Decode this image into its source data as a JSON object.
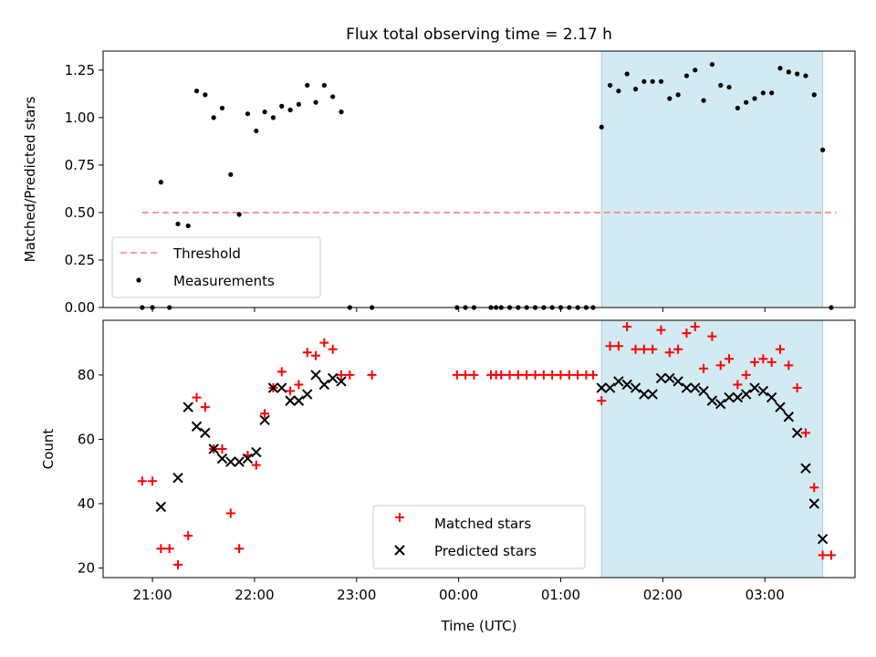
{
  "figure": {
    "title": "Flux total observing time = 2.17 h",
    "xlabel": "Time (UTC)",
    "x_ticks": [
      "21:00",
      "22:00",
      "23:00",
      "00:00",
      "01:00",
      "02:00",
      "03:00"
    ],
    "highlight_span": {
      "start": "01:24",
      "end": "03:34"
    },
    "colors": {
      "highlight": "#add8e6",
      "threshold": "#ff7f7f",
      "matched": "#ff0000",
      "predicted": "#000000"
    }
  },
  "chart_data": [
    {
      "type": "scatter",
      "ylabel": "Matched/Predicted stars",
      "ylim": [
        0,
        1.35
      ],
      "y_ticks": [
        "0.00",
        "0.25",
        "0.50",
        "0.75",
        "1.00",
        "1.25"
      ],
      "xlim": [
        "20:31",
        "03:53"
      ],
      "legend": {
        "placement": "lower-left",
        "entries": [
          "Threshold",
          "Measurements"
        ]
      },
      "threshold": {
        "name": "Threshold",
        "value": 0.5,
        "x_range": [
          "20:54",
          "03:42"
        ]
      },
      "series": [
        {
          "name": "Measurements",
          "points": [
            [
              "20:54",
              0.0
            ],
            [
              "21:00",
              0.0
            ],
            [
              "21:05",
              0.66
            ],
            [
              "21:10",
              0.0
            ],
            [
              "21:15",
              0.44
            ],
            [
              "21:21",
              0.43
            ],
            [
              "21:26",
              1.14
            ],
            [
              "21:31",
              1.12
            ],
            [
              "21:36",
              1.0
            ],
            [
              "21:41",
              1.05
            ],
            [
              "21:46",
              0.7
            ],
            [
              "21:51",
              0.49
            ],
            [
              "21:56",
              1.02
            ],
            [
              "22:01",
              0.93
            ],
            [
              "22:06",
              1.03
            ],
            [
              "22:11",
              1.0
            ],
            [
              "22:16",
              1.06
            ],
            [
              "22:21",
              1.04
            ],
            [
              "22:26",
              1.07
            ],
            [
              "22:31",
              1.17
            ],
            [
              "22:36",
              1.08
            ],
            [
              "22:41",
              1.17
            ],
            [
              "22:46",
              1.11
            ],
            [
              "22:51",
              1.03
            ],
            [
              "22:56",
              0.0
            ],
            [
              "23:09",
              0.0
            ],
            [
              "23:59",
              0.0
            ],
            [
              "00:04",
              0.0
            ],
            [
              "00:09",
              0.0
            ],
            [
              "00:19",
              0.0
            ],
            [
              "00:22",
              0.0
            ],
            [
              "00:25",
              0.0
            ],
            [
              "00:30",
              0.0
            ],
            [
              "00:35",
              0.0
            ],
            [
              "00:40",
              0.0
            ],
            [
              "00:45",
              0.0
            ],
            [
              "00:50",
              0.0
            ],
            [
              "00:55",
              0.0
            ],
            [
              "01:00",
              0.0
            ],
            [
              "01:05",
              0.0
            ],
            [
              "01:10",
              0.0
            ],
            [
              "01:15",
              0.0
            ],
            [
              "01:19",
              0.0
            ],
            [
              "01:24",
              0.95
            ],
            [
              "01:29",
              1.17
            ],
            [
              "01:34",
              1.14
            ],
            [
              "01:39",
              1.23
            ],
            [
              "01:44",
              1.15
            ],
            [
              "01:49",
              1.19
            ],
            [
              "01:54",
              1.19
            ],
            [
              "01:59",
              1.19
            ],
            [
              "02:04",
              1.1
            ],
            [
              "02:09",
              1.12
            ],
            [
              "02:14",
              1.22
            ],
            [
              "02:19",
              1.25
            ],
            [
              "02:24",
              1.09
            ],
            [
              "02:29",
              1.28
            ],
            [
              "02:34",
              1.17
            ],
            [
              "02:39",
              1.16
            ],
            [
              "02:44",
              1.05
            ],
            [
              "02:49",
              1.08
            ],
            [
              "02:54",
              1.1
            ],
            [
              "02:59",
              1.13
            ],
            [
              "03:04",
              1.13
            ],
            [
              "03:09",
              1.26
            ],
            [
              "03:14",
              1.24
            ],
            [
              "03:19",
              1.23
            ],
            [
              "03:24",
              1.22
            ],
            [
              "03:29",
              1.12
            ],
            [
              "03:34",
              0.83
            ],
            [
              "03:39",
              0.0
            ]
          ]
        }
      ]
    },
    {
      "type": "scatter",
      "ylabel": "Count",
      "ylim": [
        17,
        97
      ],
      "y_ticks": [
        "20",
        "40",
        "60",
        "80"
      ],
      "xlim": [
        "20:31",
        "03:53"
      ],
      "legend": {
        "placement": "bottom-center",
        "entries": [
          "Matched stars",
          "Predicted stars"
        ]
      },
      "series": [
        {
          "name": "Matched stars",
          "marker": "plus",
          "points": [
            [
              "20:54",
              47
            ],
            [
              "21:00",
              47
            ],
            [
              "21:05",
              26
            ],
            [
              "21:10",
              26
            ],
            [
              "21:15",
              21
            ],
            [
              "21:21",
              30
            ],
            [
              "21:26",
              73
            ],
            [
              "21:31",
              70
            ],
            [
              "21:36",
              57
            ],
            [
              "21:41",
              57
            ],
            [
              "21:46",
              37
            ],
            [
              "21:51",
              26
            ],
            [
              "21:56",
              55
            ],
            [
              "22:01",
              52
            ],
            [
              "22:06",
              68
            ],
            [
              "22:11",
              76
            ],
            [
              "22:16",
              81
            ],
            [
              "22:21",
              75
            ],
            [
              "22:26",
              77
            ],
            [
              "22:31",
              87
            ],
            [
              "22:36",
              86
            ],
            [
              "22:41",
              90
            ],
            [
              "22:46",
              88
            ],
            [
              "22:51",
              80
            ],
            [
              "22:56",
              80
            ],
            [
              "23:09",
              80
            ],
            [
              "23:59",
              80
            ],
            [
              "00:04",
              80
            ],
            [
              "00:09",
              80
            ],
            [
              "00:19",
              80
            ],
            [
              "00:22",
              80
            ],
            [
              "00:25",
              80
            ],
            [
              "00:30",
              80
            ],
            [
              "00:35",
              80
            ],
            [
              "00:40",
              80
            ],
            [
              "00:45",
              80
            ],
            [
              "00:50",
              80
            ],
            [
              "00:55",
              80
            ],
            [
              "01:00",
              80
            ],
            [
              "01:05",
              80
            ],
            [
              "01:10",
              80
            ],
            [
              "01:15",
              80
            ],
            [
              "01:19",
              80
            ],
            [
              "01:24",
              72
            ],
            [
              "01:29",
              89
            ],
            [
              "01:34",
              89
            ],
            [
              "01:39",
              95
            ],
            [
              "01:44",
              88
            ],
            [
              "01:49",
              88
            ],
            [
              "01:54",
              88
            ],
            [
              "01:59",
              94
            ],
            [
              "02:04",
              87
            ],
            [
              "02:09",
              88
            ],
            [
              "02:14",
              93
            ],
            [
              "02:19",
              95
            ],
            [
              "02:24",
              82
            ],
            [
              "02:29",
              92
            ],
            [
              "02:34",
              83
            ],
            [
              "02:39",
              85
            ],
            [
              "02:44",
              77
            ],
            [
              "02:49",
              80
            ],
            [
              "02:54",
              84
            ],
            [
              "02:59",
              85
            ],
            [
              "03:04",
              84
            ],
            [
              "03:09",
              88
            ],
            [
              "03:14",
              83
            ],
            [
              "03:19",
              76
            ],
            [
              "03:24",
              62
            ],
            [
              "03:29",
              45
            ],
            [
              "03:34",
              24
            ],
            [
              "03:39",
              24
            ]
          ]
        },
        {
          "name": "Predicted stars",
          "marker": "x",
          "points": [
            [
              "21:05",
              39
            ],
            [
              "21:15",
              48
            ],
            [
              "21:21",
              70
            ],
            [
              "21:26",
              64
            ],
            [
              "21:31",
              62
            ],
            [
              "21:36",
              57
            ],
            [
              "21:41",
              54
            ],
            [
              "21:46",
              53
            ],
            [
              "21:51",
              53
            ],
            [
              "21:56",
              54
            ],
            [
              "22:01",
              56
            ],
            [
              "22:06",
              66
            ],
            [
              "22:11",
              76
            ],
            [
              "22:16",
              76
            ],
            [
              "22:21",
              72
            ],
            [
              "22:26",
              72
            ],
            [
              "22:31",
              74
            ],
            [
              "22:36",
              80
            ],
            [
              "22:41",
              77
            ],
            [
              "22:46",
              79
            ],
            [
              "22:51",
              78
            ],
            [
              "01:24",
              76
            ],
            [
              "01:29",
              76
            ],
            [
              "01:34",
              78
            ],
            [
              "01:39",
              77
            ],
            [
              "01:44",
              76
            ],
            [
              "01:49",
              74
            ],
            [
              "01:54",
              74
            ],
            [
              "01:59",
              79
            ],
            [
              "02:04",
              79
            ],
            [
              "02:09",
              78
            ],
            [
              "02:14",
              76
            ],
            [
              "02:19",
              76
            ],
            [
              "02:24",
              75
            ],
            [
              "02:29",
              72
            ],
            [
              "02:34",
              71
            ],
            [
              "02:39",
              73
            ],
            [
              "02:44",
              73
            ],
            [
              "02:49",
              74
            ],
            [
              "02:54",
              76
            ],
            [
              "02:59",
              75
            ],
            [
              "03:04",
              73
            ],
            [
              "03:09",
              70
            ],
            [
              "03:14",
              67
            ],
            [
              "03:19",
              62
            ],
            [
              "03:24",
              51
            ],
            [
              "03:29",
              40
            ],
            [
              "03:34",
              29
            ]
          ]
        }
      ]
    }
  ]
}
